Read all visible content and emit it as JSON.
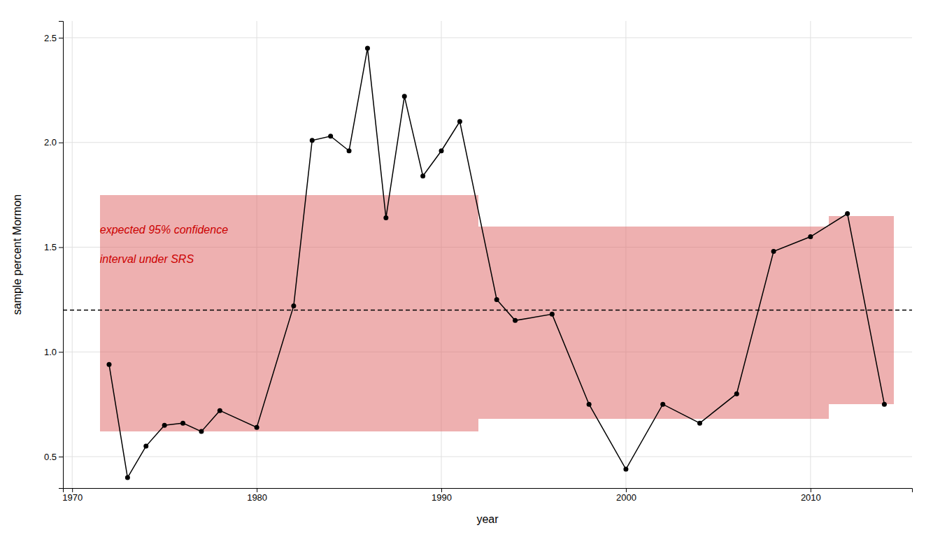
{
  "chart_data": {
    "type": "line",
    "xlabel": "year",
    "ylabel": "sample percent Mormon",
    "x": [
      1972,
      1973,
      1974,
      1975,
      1976,
      1977,
      1978,
      1980,
      1982,
      1983,
      1984,
      1985,
      1986,
      1987,
      1988,
      1989,
      1990,
      1991,
      1993,
      1994,
      1996,
      1998,
      2000,
      2002,
      2004,
      2006,
      2008,
      2010,
      2012,
      2014
    ],
    "values": [
      0.94,
      0.4,
      0.55,
      0.65,
      0.66,
      0.62,
      0.72,
      0.64,
      1.22,
      2.01,
      2.03,
      1.96,
      2.45,
      1.64,
      2.22,
      1.84,
      1.96,
      2.1,
      1.25,
      1.15,
      1.18,
      0.75,
      0.44,
      0.75,
      0.66,
      0.8,
      1.48,
      1.55,
      1.66,
      0.75
    ],
    "color": "#000000",
    "marker": "circle",
    "band": {
      "x": [
        1972,
        1973,
        1974,
        1975,
        1976,
        1977,
        1978,
        1980,
        1982,
        1983,
        1984,
        1985,
        1986,
        1987,
        1988,
        1989,
        1990,
        1991,
        1993,
        1994,
        1996,
        1998,
        2000,
        2002,
        2004,
        2006,
        2008,
        2010,
        2012,
        2014
      ],
      "lower": [
        0.62,
        0.62,
        0.62,
        0.62,
        0.62,
        0.62,
        0.62,
        0.62,
        0.62,
        0.62,
        0.62,
        0.62,
        0.62,
        0.62,
        0.62,
        0.62,
        0.62,
        0.62,
        0.68,
        0.68,
        0.68,
        0.68,
        0.68,
        0.68,
        0.68,
        0.68,
        0.68,
        0.68,
        0.75,
        0.75
      ],
      "upper": [
        1.75,
        1.75,
        1.75,
        1.75,
        1.75,
        1.75,
        1.75,
        1.75,
        1.75,
        1.75,
        1.75,
        1.75,
        1.75,
        1.75,
        1.75,
        1.75,
        1.75,
        1.75,
        1.6,
        1.6,
        1.6,
        1.6,
        1.6,
        1.6,
        1.6,
        1.6,
        1.6,
        1.6,
        1.65,
        1.65
      ],
      "color": "#e07070"
    },
    "hline": {
      "value": 1.2,
      "color": "#000000",
      "line_style": "dashed"
    },
    "annotations": [
      {
        "text": "expected 95% confidence",
        "x": 1971.5,
        "y": 1.58,
        "color": "#cc0000"
      },
      {
        "text": "interval under SRS",
        "x": 1971.5,
        "y": 1.44,
        "color": "#cc0000"
      }
    ],
    "xlim": [
      1969.5,
      2015.5
    ],
    "ylim": [
      0.35,
      2.58
    ],
    "xticks": [
      1970,
      1980,
      1990,
      2000,
      2010
    ],
    "yticks": [
      0.5,
      {
        "value": 1.0,
        "label": "1.0"
      },
      1.5,
      {
        "value": 2.0,
        "label": "2.0"
      },
      2.5
    ],
    "grid": true
  }
}
